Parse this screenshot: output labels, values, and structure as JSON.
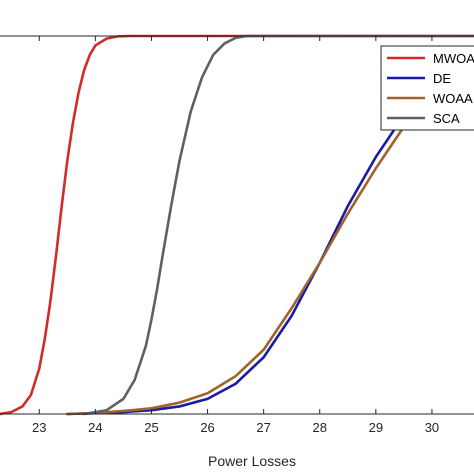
{
  "chart_data": {
    "type": "line",
    "title": "",
    "xlabel": "Power Losses",
    "ylabel": "",
    "xlim": [
      22.3,
      30.75
    ],
    "ylim": [
      0,
      1
    ],
    "x_ticks": [
      "23",
      "24",
      "25",
      "26",
      "27",
      "28",
      "29",
      "30"
    ],
    "grid": false,
    "legend_position": "top-right",
    "legend_labels": [
      "MWOA",
      "DE",
      "WOAA",
      "SCA"
    ],
    "series": [
      {
        "name": "MWOA",
        "color": "#d42a2a",
        "x": [
          22.3,
          22.5,
          22.7,
          22.85,
          23.0,
          23.1,
          23.2,
          23.3,
          23.4,
          23.5,
          23.6,
          23.7,
          23.8,
          23.9,
          24.0,
          24.2,
          24.4,
          24.6,
          30.75
        ],
        "y": [
          0.0,
          0.005,
          0.02,
          0.05,
          0.12,
          0.2,
          0.3,
          0.42,
          0.55,
          0.67,
          0.77,
          0.85,
          0.91,
          0.95,
          0.975,
          0.993,
          0.999,
          1.0,
          1.0
        ]
      },
      {
        "name": "DE",
        "color": "#1a1aa8",
        "x": [
          23.5,
          24.0,
          24.5,
          25.0,
          25.5,
          26.0,
          26.5,
          27.0,
          27.5,
          28.0,
          28.5,
          29.0,
          29.5,
          30.0,
          30.75
        ],
        "y": [
          0.0,
          0.002,
          0.005,
          0.01,
          0.02,
          0.04,
          0.08,
          0.15,
          0.26,
          0.4,
          0.55,
          0.68,
          0.79,
          0.87,
          0.95
        ]
      },
      {
        "name": "WOAA",
        "color": "#a0642a",
        "x": [
          23.5,
          24.0,
          24.5,
          25.0,
          25.5,
          26.0,
          26.5,
          27.0,
          27.5,
          28.0,
          28.5,
          29.0,
          29.5,
          30.0,
          30.75
        ],
        "y": [
          0.0,
          0.003,
          0.008,
          0.015,
          0.03,
          0.055,
          0.1,
          0.17,
          0.28,
          0.4,
          0.53,
          0.65,
          0.76,
          0.85,
          0.93
        ]
      },
      {
        "name": "SCA",
        "color": "#606060",
        "x": [
          23.8,
          24.2,
          24.5,
          24.7,
          24.9,
          25.0,
          25.1,
          25.2,
          25.35,
          25.5,
          25.7,
          25.9,
          26.1,
          26.3,
          26.5,
          26.7,
          26.9,
          30.75
        ],
        "y": [
          0.0,
          0.01,
          0.04,
          0.09,
          0.18,
          0.25,
          0.33,
          0.42,
          0.55,
          0.67,
          0.8,
          0.89,
          0.95,
          0.98,
          0.995,
          1.0,
          1.0,
          1.0
        ]
      }
    ]
  }
}
